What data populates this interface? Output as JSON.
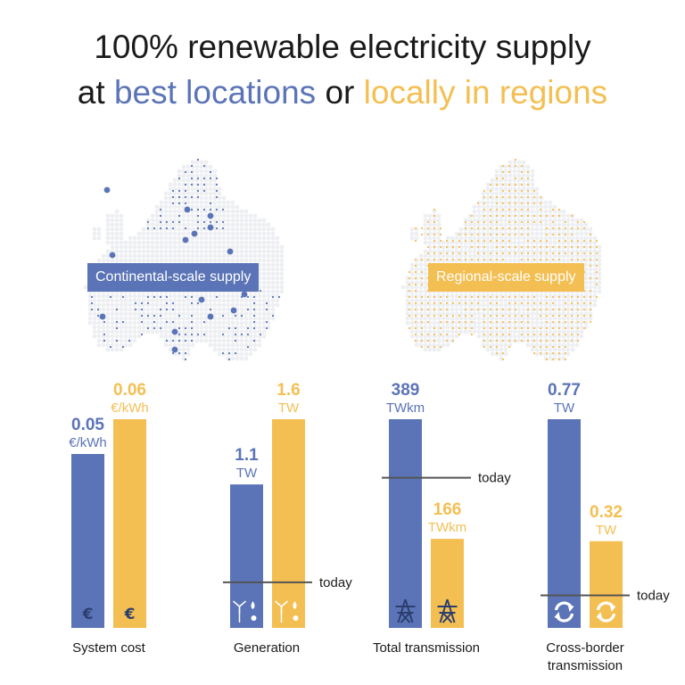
{
  "title": {
    "line1": "100% renewable electricity supply",
    "line2_prefix": "at ",
    "line2_blue": "best locations",
    "line2_mid": " or ",
    "line2_yellow": "locally in regions"
  },
  "maps": {
    "continental_label": "Continental-scale supply",
    "regional_label": "Regional-scale supply"
  },
  "colors": {
    "blue": "#5b74b7",
    "yellow": "#f4bf52",
    "today_line": "#555555",
    "map_land": "#eeeff2"
  },
  "chart_data": [
    {
      "type": "bar",
      "xlabel": "System cost",
      "categories": [
        "Continental-scale supply",
        "Regional-scale supply"
      ],
      "values": [
        0.05,
        0.06
      ],
      "value_labels": [
        "0.05",
        "0.06"
      ],
      "unit": "€/kWh",
      "today": null,
      "icon": "money-bag-euro-icon"
    },
    {
      "type": "bar",
      "xlabel": "Generation",
      "categories": [
        "Continental-scale supply",
        "Regional-scale supply"
      ],
      "values": [
        1.1,
        1.6
      ],
      "value_labels": [
        "1.1",
        "1.6"
      ],
      "unit": "TW",
      "today": 0.35,
      "today_label": "today",
      "icon": "wind-water-solar-icon"
    },
    {
      "type": "bar",
      "xlabel": "Total transmission",
      "categories": [
        "Continental-scale supply",
        "Regional-scale supply"
      ],
      "values": [
        389,
        166
      ],
      "value_labels": [
        "389",
        "166"
      ],
      "unit": "TWkm",
      "today": 280,
      "today_label": "today",
      "icon": "transmission-tower-icon"
    },
    {
      "type": "bar",
      "xlabel": "Cross-border transmission",
      "xlabel_lines": [
        "Cross-border",
        "transmission"
      ],
      "categories": [
        "Continental-scale supply",
        "Regional-scale supply"
      ],
      "values": [
        0.77,
        0.32
      ],
      "value_labels": [
        "0.77",
        "0.32"
      ],
      "unit": "TW",
      "today": 0.12,
      "today_label": "today",
      "icon": "exchange-arrows-icon"
    }
  ]
}
